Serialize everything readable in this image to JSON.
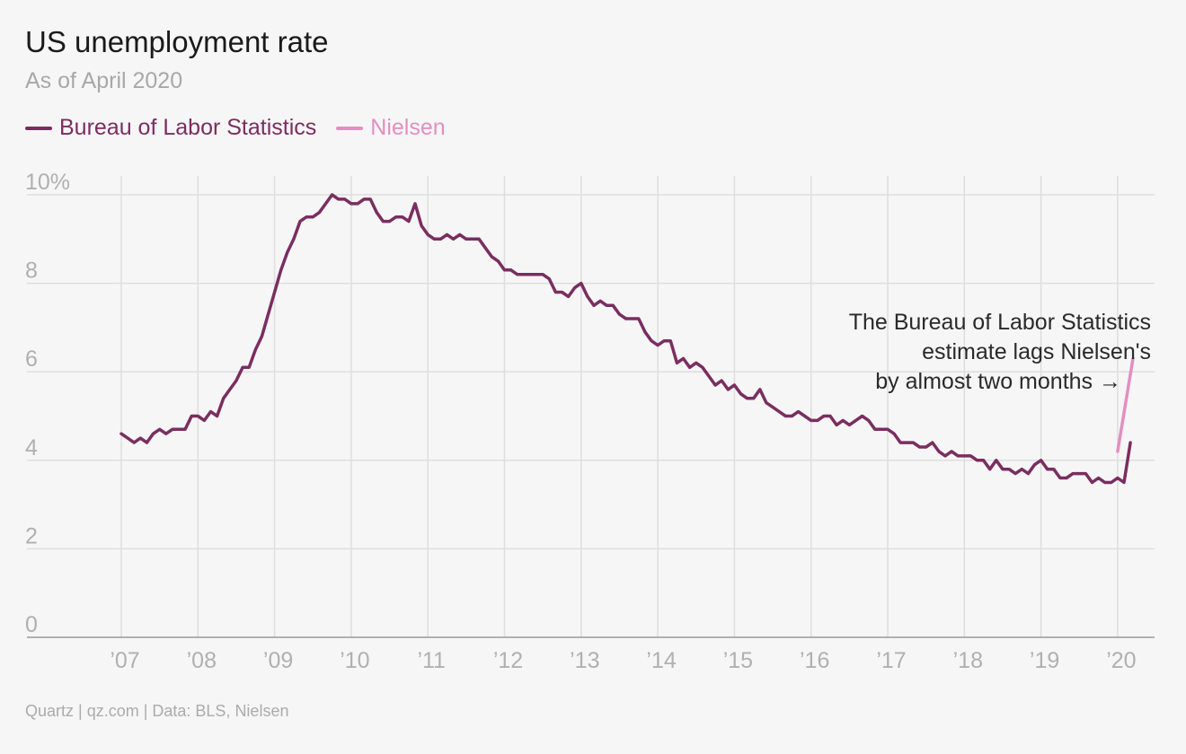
{
  "title": "US unemployment rate",
  "subtitle": "As of April 2020",
  "source": "Quartz | qz.com | Data: BLS, Nielsen",
  "colors": {
    "bls": "#7a2e60",
    "nielsen": "#e28fc0",
    "grid": "#dedede",
    "axis": "#9a9a9a",
    "tick": "#b0b0b0",
    "annotation": "#2a2a2a"
  },
  "legend": [
    {
      "name": "Bureau of Labor Statistics",
      "color": "#7a2e60"
    },
    {
      "name": "Nielsen",
      "color": "#e28fc0"
    }
  ],
  "annotation": {
    "lines": [
      "The Bureau of Labor Statistics",
      "estimate lags Nielsen's",
      "by almost two months →"
    ]
  },
  "chart_data": {
    "type": "line",
    "title": "US unemployment rate",
    "subtitle": "As of April 2020",
    "ylim": [
      0,
      10
    ],
    "xlim": [
      2006.0,
      2020.5
    ],
    "y_ticks": [
      0,
      2,
      4,
      6,
      8,
      10
    ],
    "y_tick_labels": [
      "0",
      "2",
      "4",
      "6",
      "8",
      "10%"
    ],
    "x_ticks": [
      2007,
      2008,
      2009,
      2010,
      2011,
      2012,
      2013,
      2014,
      2015,
      2016,
      2017,
      2018,
      2019,
      2020
    ],
    "x_tick_labels": [
      "’07",
      "’08",
      "’09",
      "’10",
      "’11",
      "’12",
      "’13",
      "’14",
      "’15",
      "’16",
      "’17",
      "’18",
      "’19",
      "’20"
    ],
    "grid": true,
    "legend_position": "top-left",
    "series": [
      {
        "name": "Bureau of Labor Statistics",
        "start": "2007-01",
        "frequency": "monthly",
        "values": [
          4.6,
          4.5,
          4.4,
          4.5,
          4.4,
          4.6,
          4.7,
          4.6,
          4.7,
          4.7,
          4.7,
          5.0,
          5.0,
          4.9,
          5.1,
          5.0,
          5.4,
          5.6,
          5.8,
          6.1,
          6.1,
          6.5,
          6.8,
          7.3,
          7.8,
          8.3,
          8.7,
          9.0,
          9.4,
          9.5,
          9.5,
          9.6,
          9.8,
          10.0,
          9.9,
          9.9,
          9.8,
          9.8,
          9.9,
          9.9,
          9.6,
          9.4,
          9.4,
          9.5,
          9.5,
          9.4,
          9.8,
          9.3,
          9.1,
          9.0,
          9.0,
          9.1,
          9.0,
          9.1,
          9.0,
          9.0,
          9.0,
          8.8,
          8.6,
          8.5,
          8.3,
          8.3,
          8.2,
          8.2,
          8.2,
          8.2,
          8.2,
          8.1,
          7.8,
          7.8,
          7.7,
          7.9,
          8.0,
          7.7,
          7.5,
          7.6,
          7.5,
          7.5,
          7.3,
          7.2,
          7.2,
          7.2,
          6.9,
          6.7,
          6.6,
          6.7,
          6.7,
          6.2,
          6.3,
          6.1,
          6.2,
          6.1,
          5.9,
          5.7,
          5.8,
          5.6,
          5.7,
          5.5,
          5.4,
          5.4,
          5.6,
          5.3,
          5.2,
          5.1,
          5.0,
          5.0,
          5.1,
          5.0,
          4.9,
          4.9,
          5.0,
          5.0,
          4.8,
          4.9,
          4.8,
          4.9,
          5.0,
          4.9,
          4.7,
          4.7,
          4.7,
          4.6,
          4.4,
          4.4,
          4.4,
          4.3,
          4.3,
          4.4,
          4.2,
          4.1,
          4.2,
          4.1,
          4.1,
          4.1,
          4.0,
          4.0,
          3.8,
          4.0,
          3.8,
          3.8,
          3.7,
          3.8,
          3.7,
          3.9,
          4.0,
          3.8,
          3.8,
          3.6,
          3.6,
          3.7,
          3.7,
          3.7,
          3.5,
          3.6,
          3.5,
          3.5,
          3.6,
          3.5,
          4.4
        ]
      },
      {
        "name": "Nielsen",
        "x": [
          2020.0,
          2020.2
        ],
        "values": [
          4.2,
          6.3
        ]
      }
    ]
  }
}
